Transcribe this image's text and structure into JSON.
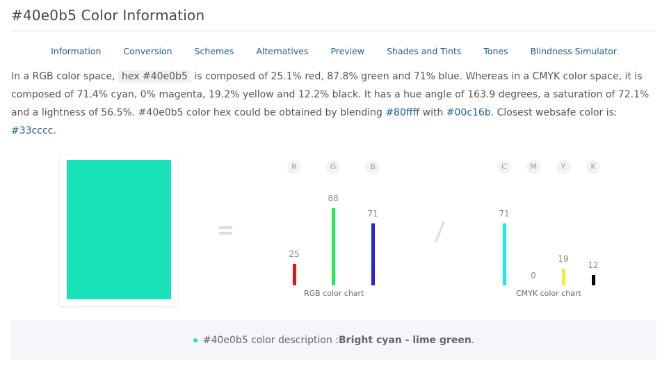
{
  "page": {
    "title": "#40e0b5 Color Information"
  },
  "tabs": [
    {
      "label": "Information"
    },
    {
      "label": "Conversion"
    },
    {
      "label": "Schemes"
    },
    {
      "label": "Alternatives"
    },
    {
      "label": "Preview"
    },
    {
      "label": "Shades and Tints"
    },
    {
      "label": "Tones"
    },
    {
      "label": "Blindness Simulator"
    }
  ],
  "description": {
    "part1": "In a RGB color space, ",
    "hex_code": "hex #40e0b5",
    "part2": " is composed of 25.1% red, 87.8% green and 71% blue. Whereas in a CMYK color space, it is composed of 71.4% cyan, 0% magenta, 19.2% yellow and 12.2% black. It has a hue angle of 163.9 degrees, a saturation of 72.1% and a lightness of 56.5%. #40e0b5 color hex could be obtained by blending ",
    "blend1": "#80ffff",
    "part3": " with ",
    "blend2": "#00c16b",
    "part4": ". Closest websafe color is: ",
    "websafe": "#33cccc",
    "part5": "."
  },
  "swatch": {
    "color": "#17e2b8"
  },
  "rgb_chart": {
    "label": "RGB color chart",
    "bars": [
      {
        "letter": "R",
        "value": 25,
        "display": "25",
        "color": "#ee1111"
      },
      {
        "letter": "G",
        "value": 88,
        "display": "88",
        "color": "#22ee55"
      },
      {
        "letter": "B",
        "value": 71,
        "display": "71",
        "color": "#2222dd"
      }
    ]
  },
  "cmyk_chart": {
    "label": "CMYK color chart",
    "bars": [
      {
        "letter": "C",
        "value": 71,
        "display": "71",
        "color": "#11eeee"
      },
      {
        "letter": "M",
        "value": 0,
        "display": "0",
        "color": "#ee11ee"
      },
      {
        "letter": "Y",
        "value": 19,
        "display": "19",
        "color": "#eeee33"
      },
      {
        "letter": "K",
        "value": 12,
        "display": "12",
        "color": "#000000"
      }
    ]
  },
  "color_description": {
    "prefix": "#40e0b5 color description : ",
    "name": "Bright cyan - lime green",
    "suffix": ".",
    "dot_color": "#17e2b8"
  }
}
